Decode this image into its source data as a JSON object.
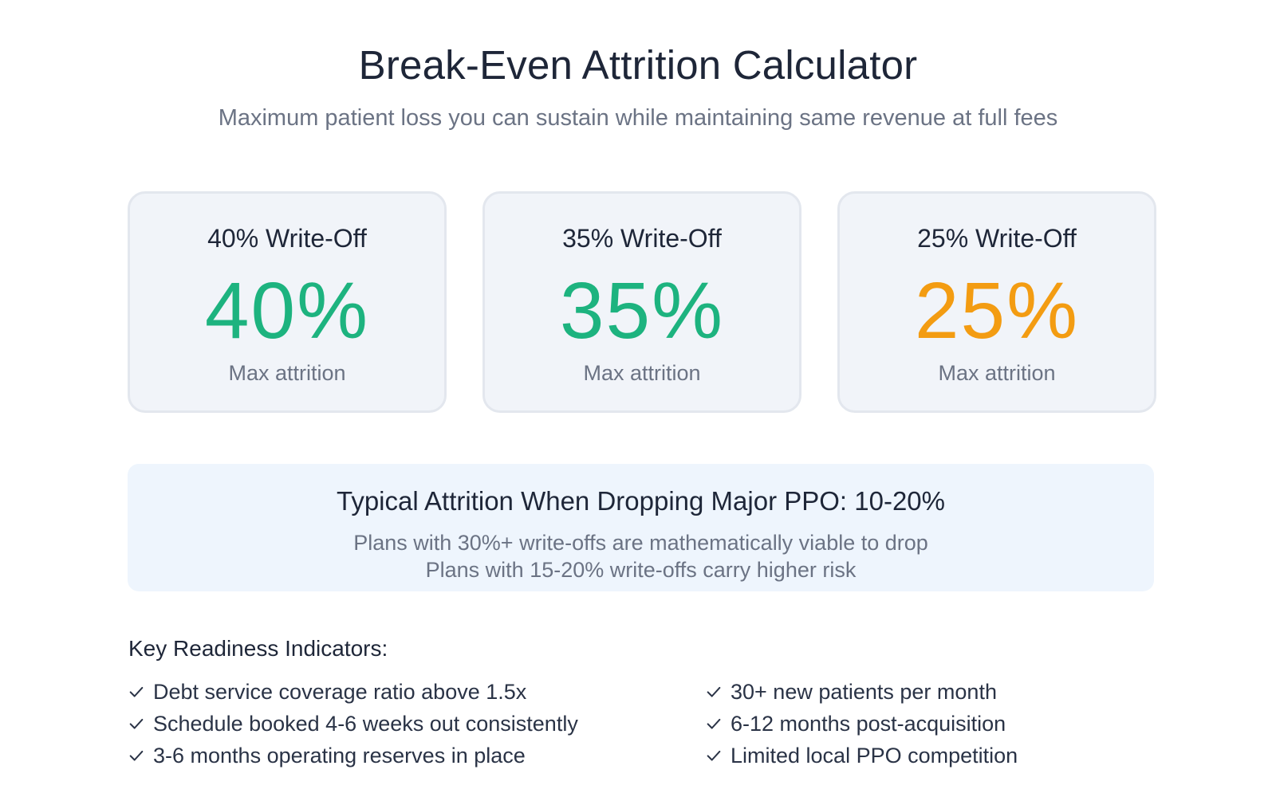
{
  "header": {
    "title": "Break-Even Attrition Calculator",
    "subtitle": "Maximum patient loss you can sustain while maintaining same revenue at full fees"
  },
  "cards": [
    {
      "label": "40% Write-Off",
      "value": "40%",
      "caption": "Max attrition",
      "color": "#1db37f"
    },
    {
      "label": "35% Write-Off",
      "value": "35%",
      "caption": "Max attrition",
      "color": "#1db37f"
    },
    {
      "label": "25% Write-Off",
      "value": "25%",
      "caption": "Max attrition",
      "color": "#f39c12"
    }
  ],
  "info": {
    "heading": "Typical Attrition When Dropping Major PPO: 10-20%",
    "line1": "Plans with 30%+ write-offs are mathematically viable to drop",
    "line2": "Plans with 15-20% write-offs carry higher risk"
  },
  "indicators": {
    "title": "Key Readiness Indicators:",
    "left": [
      "Debt service coverage ratio above 1.5x",
      "Schedule booked 4-6 weeks out consistently",
      "3-6 months operating reserves in place"
    ],
    "right": [
      "30+ new patients per month",
      "6-12 months post-acquisition",
      "Limited local PPO competition"
    ],
    "icon": "check-icon"
  }
}
